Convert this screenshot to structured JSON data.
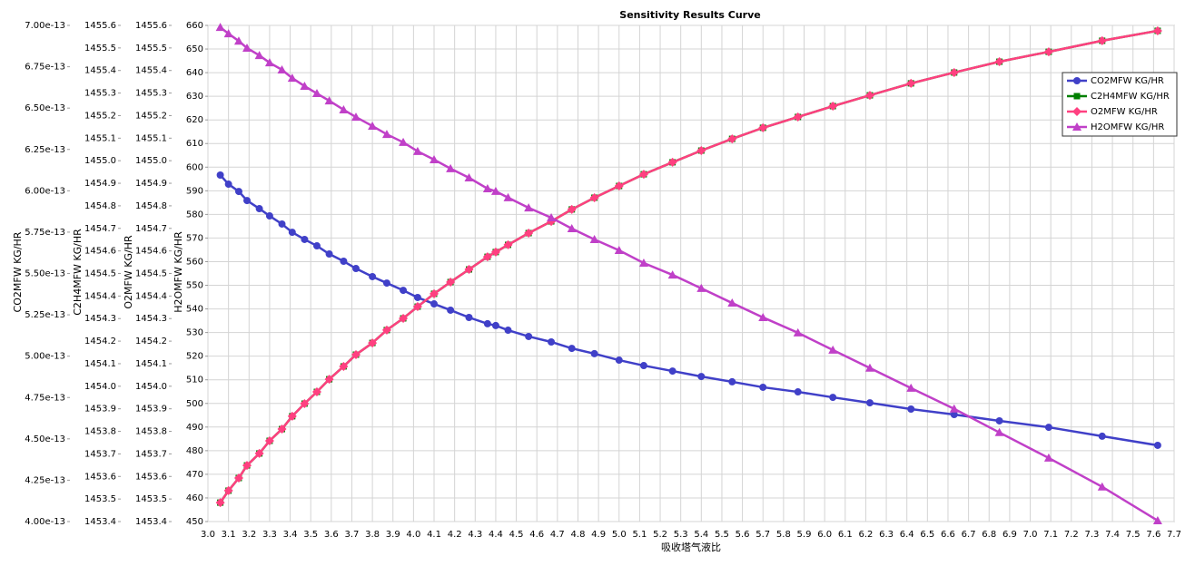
{
  "chart_data": {
    "type": "line",
    "title": "Sensitivity Results Curve",
    "x_label": "吸收塔气液比",
    "x": [
      3.06,
      3.1,
      3.15,
      3.19,
      3.25,
      3.3,
      3.36,
      3.41,
      3.47,
      3.53,
      3.59,
      3.66,
      3.72,
      3.8,
      3.87,
      3.95,
      4.02,
      4.1,
      4.18,
      4.27,
      4.36,
      4.4,
      4.46,
      4.56,
      4.67,
      4.77,
      4.88,
      5.0,
      5.12,
      5.26,
      5.4,
      5.55,
      5.7,
      5.87,
      6.04,
      6.22,
      6.42,
      6.63,
      6.85,
      7.09,
      7.35,
      7.62
    ],
    "xlim": [
      3.0,
      7.7
    ],
    "xticks": [
      {
        "value": 3.0,
        "label": "3.0"
      },
      3.1,
      3.2,
      3.3,
      3.4,
      3.5,
      3.6,
      3.7,
      3.8,
      3.9,
      {
        "value": 4.0,
        "label": "4.0"
      },
      4.1,
      4.2,
      4.3,
      4.4,
      4.5,
      4.6,
      4.7,
      4.8,
      4.9,
      {
        "value": 5.0,
        "label": "5.0"
      },
      5.1,
      5.2,
      5.3,
      5.4,
      5.5,
      5.6,
      5.7,
      5.8,
      5.9,
      {
        "value": 6.0,
        "label": "6.0"
      },
      6.1,
      6.2,
      6.3,
      6.4,
      6.5,
      6.6,
      6.7,
      6.8,
      6.9,
      {
        "value": 7.0,
        "label": "7.0"
      },
      7.1,
      7.2,
      7.3,
      7.4,
      7.5,
      7.6,
      7.7
    ],
    "grid": true,
    "legend": "upper right",
    "y_axes": [
      {
        "label": "CO2MFW KG/HR",
        "lim": [
          4e-13,
          7e-13
        ],
        "ticks": [
          {
            "value": 4e-13,
            "label": "4.00e-13"
          },
          {
            "value": 4.25e-13,
            "label": "4.25e-13"
          },
          {
            "value": 4.5e-13,
            "label": "4.50e-13"
          },
          {
            "value": 4.75e-13,
            "label": "4.75e-13"
          },
          {
            "value": 5e-13,
            "label": "5.00e-13"
          },
          {
            "value": 5.25e-13,
            "label": "5.25e-13"
          },
          {
            "value": 5.5e-13,
            "label": "5.50e-13"
          },
          {
            "value": 5.75e-13,
            "label": "5.75e-13"
          },
          {
            "value": 6e-13,
            "label": "6.00e-13"
          },
          {
            "value": 6.25e-13,
            "label": "6.25e-13"
          },
          {
            "value": 6.5e-13,
            "label": "6.50e-13"
          },
          {
            "value": 6.75e-13,
            "label": "6.75e-13"
          },
          {
            "value": 7e-13,
            "label": "7.00e-13"
          }
        ]
      },
      {
        "label": "C2H4MFW KG/HR",
        "lim": [
          1453.4,
          1455.6
        ],
        "ticks": [
          1453.4,
          1453.5,
          1453.6,
          1453.7,
          1453.8,
          1453.9,
          {
            "value": 1454.0,
            "label": "1454.0"
          },
          1454.1,
          1454.2,
          1454.3,
          1454.4,
          1454.5,
          1454.6,
          1454.7,
          1454.8,
          1454.9,
          {
            "value": 1455.0,
            "label": "1455.0"
          },
          1455.1,
          1455.2,
          1455.3,
          1455.4,
          1455.5,
          1455.6
        ]
      },
      {
        "label": "O2MFW KG/HR",
        "lim": [
          1453.4,
          1455.6
        ],
        "ticks": [
          1453.4,
          1453.5,
          1453.6,
          1453.7,
          1453.8,
          1453.9,
          {
            "value": 1454.0,
            "label": "1454.0"
          },
          1454.1,
          1454.2,
          1454.3,
          1454.4,
          1454.5,
          1454.6,
          1454.7,
          1454.8,
          1454.9,
          {
            "value": 1455.0,
            "label": "1455.0"
          },
          1455.1,
          1455.2,
          1455.3,
          1455.4,
          1455.5,
          1455.6
        ]
      },
      {
        "label": "H2OMFW KG/HR",
        "lim": [
          450,
          660
        ],
        "ticks": [
          450,
          460,
          470,
          480,
          490,
          500,
          510,
          520,
          530,
          540,
          550,
          560,
          570,
          580,
          590,
          600,
          610,
          620,
          630,
          640,
          650,
          660
        ]
      }
    ],
    "series": [
      {
        "name": "CO2MFW KG/HR",
        "color": "#4040c8",
        "marker": "circle",
        "axis": 0,
        "values": [
          6.095e-13,
          6.04e-13,
          5.996e-13,
          5.941e-13,
          5.892e-13,
          5.848e-13,
          5.799e-13,
          5.749e-13,
          5.706e-13,
          5.667e-13,
          5.618e-13,
          5.574e-13,
          5.53e-13,
          5.481e-13,
          5.442e-13,
          5.398e-13,
          5.355e-13,
          5.316e-13,
          5.278e-13,
          5.234e-13,
          5.196e-13,
          5.185e-13,
          5.157e-13,
          5.119e-13,
          5.086e-13,
          5.047e-13,
          5.015e-13,
          4.976e-13,
          4.943e-13,
          4.91e-13,
          4.877e-13,
          4.845e-13,
          4.812e-13,
          4.784e-13,
          4.751e-13,
          4.718e-13,
          4.68e-13,
          4.647e-13,
          4.609e-13,
          4.57e-13,
          4.516e-13,
          4.461e-13
        ]
      },
      {
        "name": "C2H4MFW KG/HR",
        "color": "#008000",
        "marker": "square",
        "axis": 1,
        "values": [
          1453.484,
          1453.537,
          1453.593,
          1453.649,
          1453.702,
          1453.758,
          1453.81,
          1453.867,
          1453.923,
          1453.975,
          1454.031,
          1454.088,
          1454.14,
          1454.192,
          1454.249,
          1454.301,
          1454.353,
          1454.41,
          1454.462,
          1454.518,
          1454.574,
          1454.595,
          1454.627,
          1454.679,
          1454.731,
          1454.784,
          1454.836,
          1454.888,
          1454.94,
          1454.993,
          1455.045,
          1455.097,
          1455.146,
          1455.194,
          1455.242,
          1455.29,
          1455.343,
          1455.391,
          1455.439,
          1455.483,
          1455.532,
          1455.576
        ]
      },
      {
        "name": "O2MFW KG/HR",
        "color": "#ff4080",
        "marker": "diamond",
        "axis": 2,
        "values": [
          1453.484,
          1453.537,
          1453.593,
          1453.649,
          1453.702,
          1453.758,
          1453.81,
          1453.867,
          1453.923,
          1453.975,
          1454.031,
          1454.088,
          1454.14,
          1454.192,
          1454.249,
          1454.301,
          1454.353,
          1454.41,
          1454.462,
          1454.518,
          1454.574,
          1454.595,
          1454.627,
          1454.679,
          1454.731,
          1454.784,
          1454.836,
          1454.888,
          1454.94,
          1454.993,
          1455.045,
          1455.097,
          1455.146,
          1455.194,
          1455.242,
          1455.29,
          1455.343,
          1455.391,
          1455.439,
          1455.483,
          1455.532,
          1455.576
        ]
      },
      {
        "name": "H2OMFW KG/HR",
        "color": "#c040c8",
        "marker": "triangle",
        "axis": 3,
        "values": [
          659.2,
          656.5,
          653.4,
          650.4,
          647.3,
          644.2,
          641.2,
          637.7,
          634.3,
          631.2,
          628.1,
          624.3,
          621.2,
          617.4,
          613.9,
          610.5,
          606.7,
          603.2,
          599.4,
          595.5,
          590.9,
          589.8,
          587.1,
          582.8,
          578.6,
          574.0,
          569.4,
          564.8,
          559.4,
          554.4,
          548.7,
          542.5,
          536.4,
          529.9,
          522.6,
          515.0,
          506.5,
          497.7,
          487.7,
          476.9,
          464.7,
          450.4
        ]
      }
    ]
  }
}
